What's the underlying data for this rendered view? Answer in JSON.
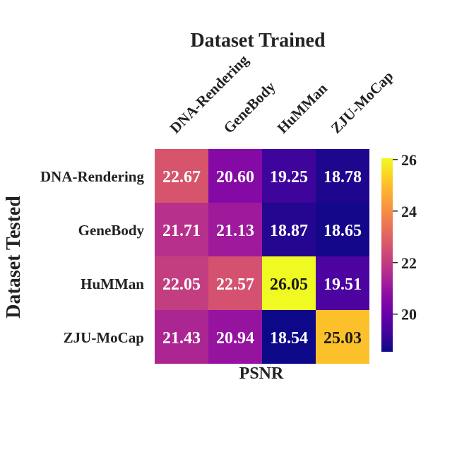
{
  "chart_data": {
    "type": "heatmap",
    "title": "Dataset Trained",
    "xlabel": "PSNR",
    "ylabel": "Dataset Tested",
    "columns": [
      "DNA-Rendering",
      "GeneBody",
      "HuMMan",
      "ZJU-MoCap"
    ],
    "rows": [
      "DNA-Rendering",
      "GeneBody",
      "HuMMan",
      "ZJU-MoCap"
    ],
    "values": [
      [
        22.67,
        20.6,
        19.25,
        18.78
      ],
      [
        21.71,
        21.13,
        18.87,
        18.65
      ],
      [
        22.05,
        22.57,
        26.05,
        19.51
      ],
      [
        21.43,
        20.94,
        18.54,
        25.03
      ]
    ],
    "colormap": "plasma",
    "color_range": [
      18.54,
      26.05
    ],
    "colorbar_ticks": [
      20,
      22,
      24,
      26
    ]
  }
}
